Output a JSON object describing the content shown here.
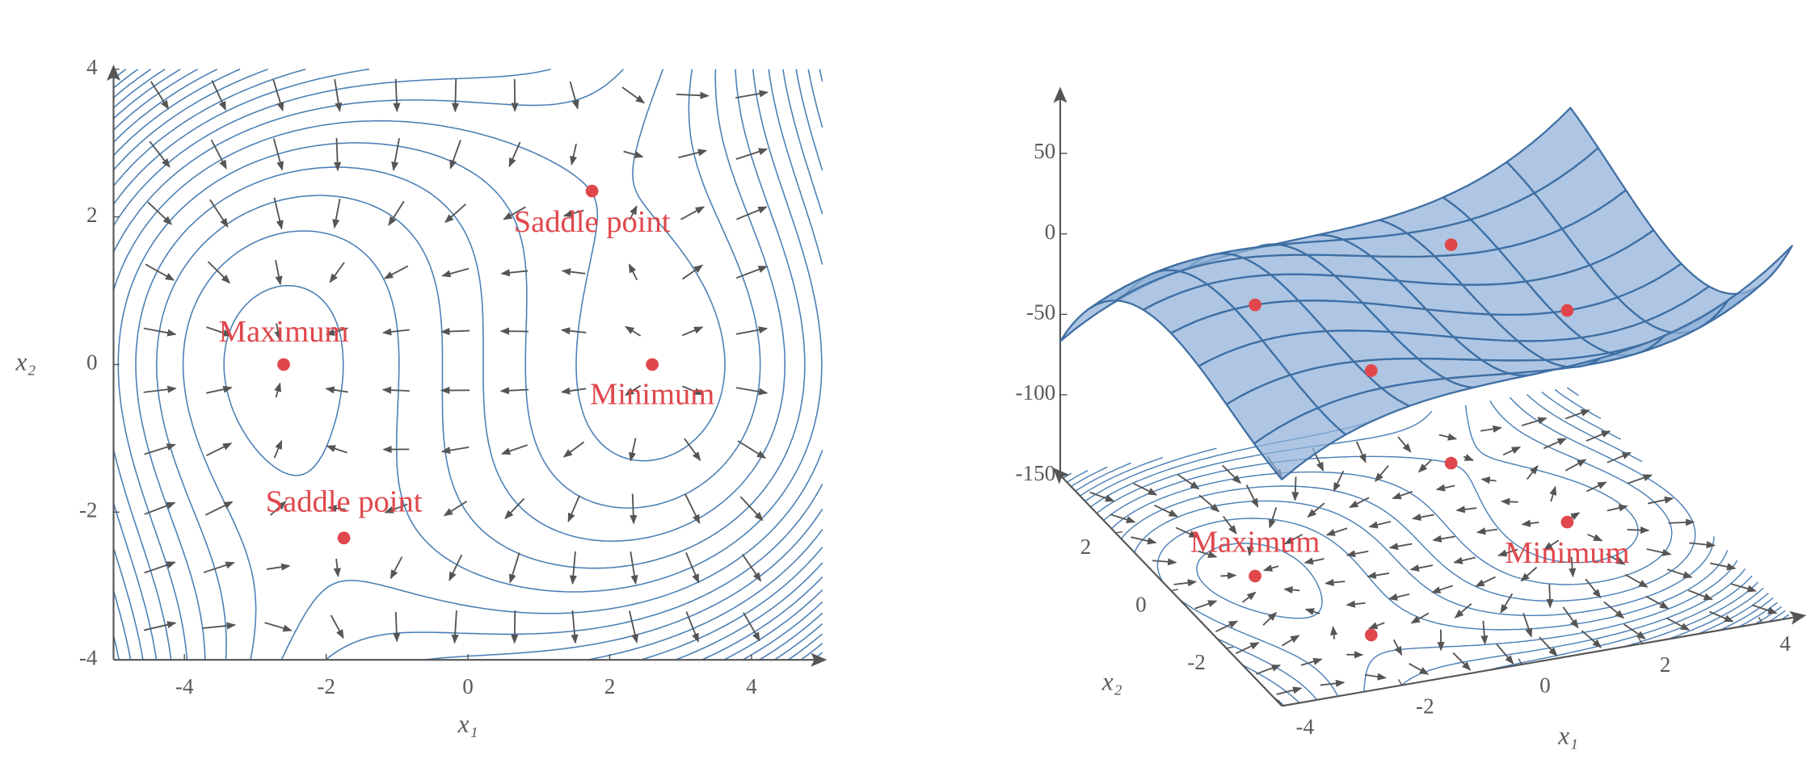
{
  "chart_data": [
    {
      "type": "contour",
      "xlabel": "x₁",
      "ylabel": "x₂",
      "xlim": [
        -5,
        5
      ],
      "ylim": [
        -4,
        4
      ],
      "xticks": [
        -4,
        -2,
        0,
        2,
        4
      ],
      "yticks": [
        -4,
        -2,
        0,
        2,
        4
      ],
      "line_color": "#4a7fb5",
      "point_color": "#e0474c",
      "points": [
        {
          "label": "Maximum",
          "x": -2.6,
          "y": 0
        },
        {
          "label": "Saddle point",
          "x": 1.75,
          "y": 2.35
        },
        {
          "label": "Minimum",
          "x": 2.6,
          "y": 0
        },
        {
          "label": "Saddle point",
          "x": -1.75,
          "y": -2.35
        }
      ]
    },
    {
      "type": "surface3d",
      "xlabel": "x₁",
      "ylabel": "x₂",
      "xlim": [
        -4,
        4.5
      ],
      "ylim": [
        -4,
        4
      ],
      "zlim": [
        -150,
        90
      ],
      "xticks": [
        -4,
        -2,
        0,
        2,
        4
      ],
      "yticks": [
        -2,
        0,
        2
      ],
      "zticks": [
        50,
        0,
        -50,
        -100,
        -150
      ],
      "line_color": "#4a7fb5",
      "surface_color": "#8fb0d8",
      "point_color": "#e0474c",
      "points": [
        {
          "label": "Maximum",
          "x": -2.6,
          "y": 0
        },
        {
          "label": "Minimum",
          "x": 2.6,
          "y": 0
        },
        {
          "x": 1.75,
          "y": 2.35
        },
        {
          "x": -1.75,
          "y": -2.35
        }
      ]
    }
  ]
}
